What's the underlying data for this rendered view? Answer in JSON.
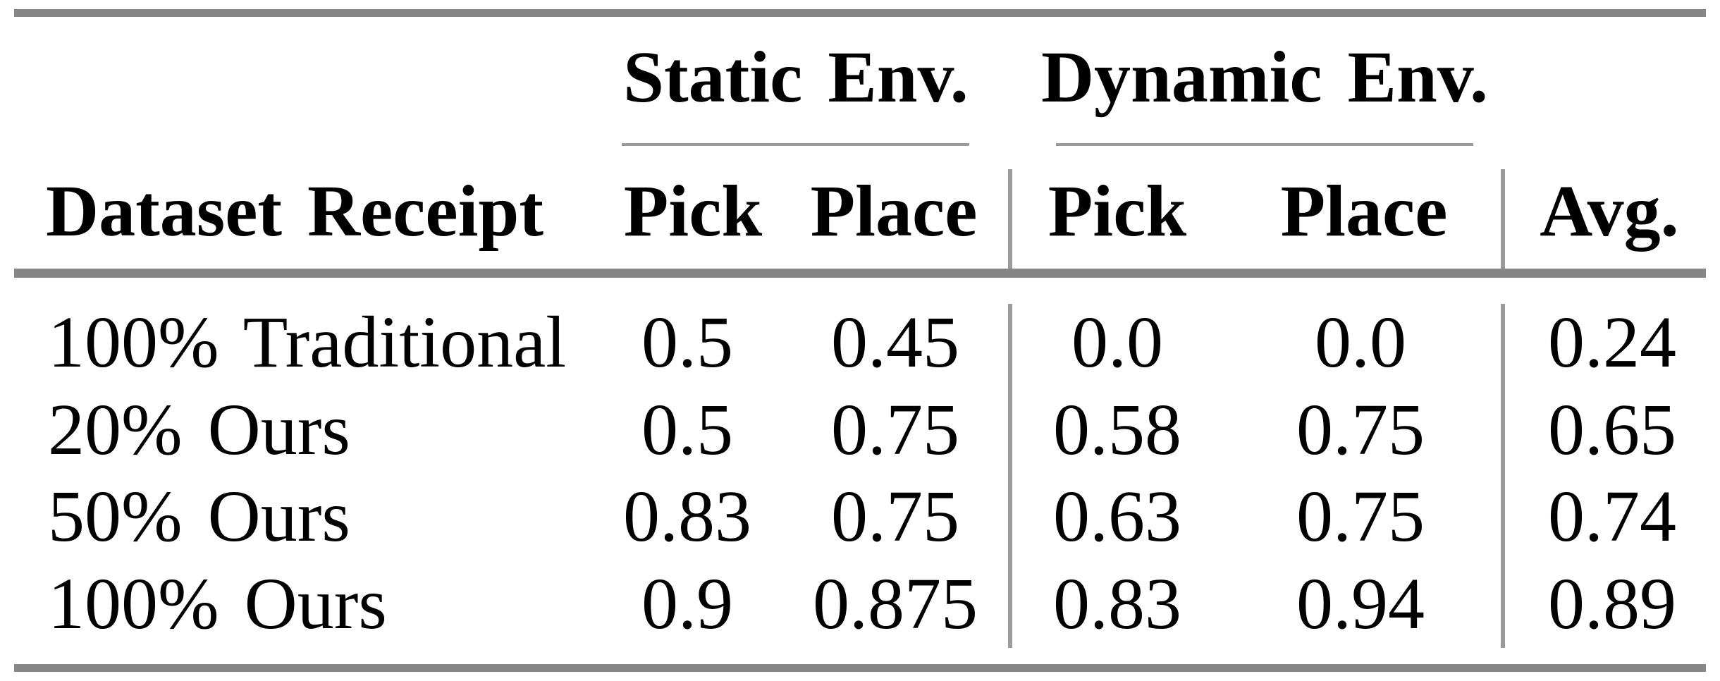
{
  "table": {
    "group_headers": {
      "static": "Static Env.",
      "dynamic": "Dynamic Env."
    },
    "column_headers": {
      "dataset": "Dataset Receipt",
      "static_pick": "Pick",
      "static_place": "Place",
      "dynamic_pick": "Pick",
      "dynamic_place": "Place",
      "avg": "Avg."
    },
    "rows": [
      {
        "label": "100% Traditional",
        "static_pick": "0.5",
        "static_place": "0.45",
        "dynamic_pick": "0.0",
        "dynamic_place": "0.0",
        "avg": "0.24"
      },
      {
        "label": "20% Ours",
        "static_pick": "0.5",
        "static_place": "0.75",
        "dynamic_pick": "0.58",
        "dynamic_place": "0.75",
        "avg": "0.65"
      },
      {
        "label": "50% Ours",
        "static_pick": "0.83",
        "static_place": "0.75",
        "dynamic_pick": "0.63",
        "dynamic_place": "0.75",
        "avg": "0.74"
      },
      {
        "label": "100% Ours",
        "static_pick": "0.9",
        "static_place": "0.875",
        "dynamic_pick": "0.83",
        "dynamic_place": "0.94",
        "avg": "0.89"
      }
    ],
    "colors": {
      "rule_heavy": "#868686",
      "rule_light": "#9b9b9b",
      "text": "#000000",
      "background": "#ffffff"
    }
  }
}
